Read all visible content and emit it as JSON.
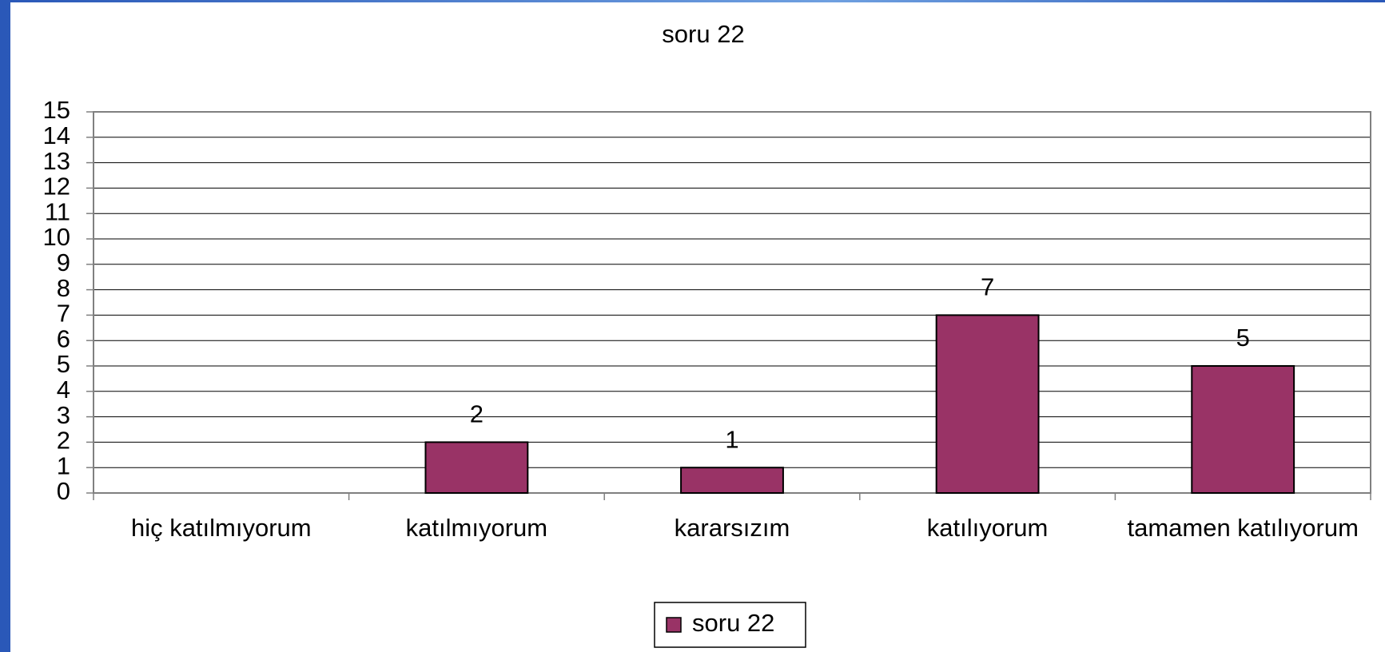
{
  "chart_data": {
    "type": "bar",
    "title": "soru 22",
    "categories": [
      "hiç katılmıyorum",
      "katılmıyorum",
      "kararsızım",
      "katılıyorum",
      "tamamen katılıyorum"
    ],
    "series": [
      {
        "name": "soru 22",
        "color": "#993366",
        "values": [
          null,
          2,
          1,
          7,
          5
        ]
      }
    ],
    "ylim": [
      0,
      15
    ],
    "yticks": [
      0,
      1,
      2,
      3,
      4,
      5,
      6,
      7,
      8,
      9,
      10,
      11,
      12,
      13,
      14,
      15
    ],
    "grid": true,
    "legend": "bottom"
  }
}
